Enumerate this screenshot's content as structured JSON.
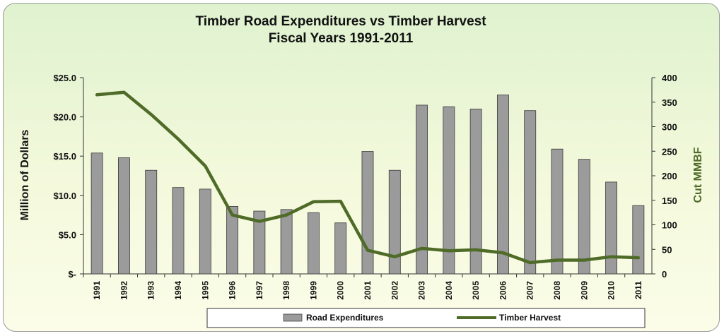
{
  "chart_data": {
    "type": "bar",
    "title": "Timber Road Expenditures vs Timber  Harvest",
    "subtitle": "Fiscal Years 1991-2011",
    "ylabel": "Million of Dollars",
    "y2label": "Cut MMBF",
    "ylim": [
      0,
      25
    ],
    "y2lim": [
      0,
      400
    ],
    "yticks": [
      "$-",
      "$5.0",
      "$10.0",
      "$15.0",
      "$20.0",
      "$25.0"
    ],
    "y2ticks": [
      "0",
      "50",
      "100",
      "150",
      "200",
      "250",
      "300",
      "350",
      "400"
    ],
    "categories": [
      "1991",
      "1992",
      "1993",
      "1994",
      "1995",
      "1996",
      "1997",
      "1998",
      "1999",
      "2000",
      "2001",
      "2002",
      "2003",
      "2004",
      "2005",
      "2006",
      "2007",
      "2008",
      "2009",
      "2010",
      "2011"
    ],
    "series": [
      {
        "name": "Road Expenditures",
        "type": "bar",
        "axis": "left",
        "color": "#9b9b9b",
        "values": [
          15.4,
          14.8,
          13.2,
          11.0,
          10.8,
          8.6,
          8.0,
          8.2,
          7.8,
          6.5,
          15.6,
          13.2,
          21.5,
          21.3,
          21.0,
          22.8,
          20.8,
          15.9,
          14.6,
          11.7,
          8.7
        ]
      },
      {
        "name": "Timber Harvest",
        "type": "line",
        "axis": "right",
        "color": "#4f6b28",
        "values": [
          365,
          370,
          325,
          275,
          220,
          120,
          107,
          120,
          147,
          148,
          48,
          35,
          52,
          47,
          49,
          43,
          23,
          28,
          28,
          35,
          33
        ]
      }
    ],
    "legend": "bottom",
    "grid": false
  }
}
